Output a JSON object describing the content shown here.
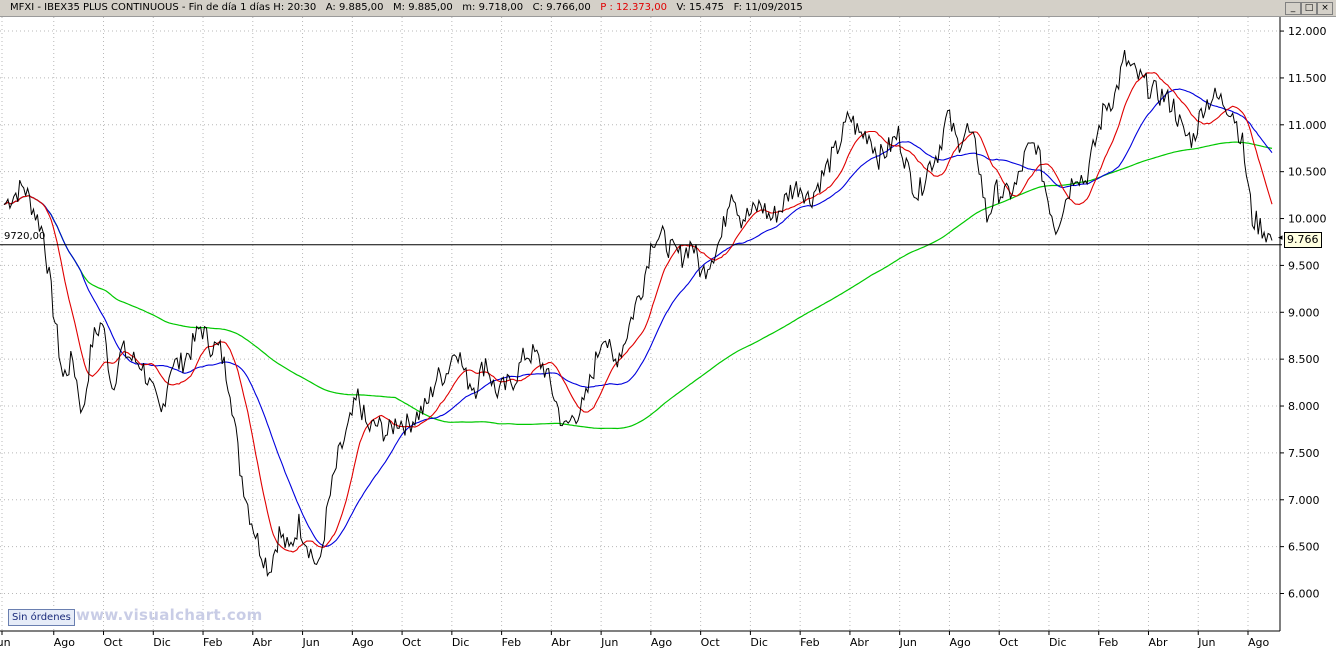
{
  "header": {
    "symbol": "MFXI - IBEX35 PLUS CONTINUOUS - Fin de día 1 días",
    "hour": "H: 20:30",
    "open": "A: 9.885,00",
    "max": "M: 9.885,00",
    "min": "m: 9.718,00",
    "close": "C: 9.766,00",
    "pnl": "P : 12.373,00",
    "volume": "V: 15.475",
    "date": "F: 11/09/2015",
    "pnl_color": "#e00000"
  },
  "window_buttons": [
    "_",
    "□",
    "×"
  ],
  "sin_ordenes": "Sin órdenes",
  "watermark": "www.visualchart.com",
  "horizontal_line_label": "9720,00",
  "current_price_label": "9.766",
  "chart_data": {
    "type": "line",
    "ylim": [
      5600,
      12150
    ],
    "yticks": [
      6000,
      6500,
      7000,
      7500,
      8000,
      8500,
      9000,
      9500,
      10000,
      10500,
      11000,
      11500,
      12000
    ],
    "ytick_labels": [
      "6.000",
      "6.500",
      "7.000",
      "7.500",
      "8.000",
      "8.500",
      "9.000",
      "9.500",
      "10.000",
      "10.500",
      "11.000",
      "11.500",
      "12.000"
    ],
    "xlabels": [
      "Jun",
      "Ago",
      "Oct",
      "Dic",
      "Feb",
      "Abr",
      "Jun",
      "Ago",
      "Oct",
      "Dic",
      "Feb",
      "Abr",
      "Jun",
      "Ago",
      "Oct",
      "Dic",
      "Feb",
      "Abr",
      "Jun",
      "Ago",
      "Oct",
      "Dic",
      "Feb",
      "Abr",
      "Jun",
      "Ago"
    ],
    "horizontal_line": 9720,
    "last_value": 9766,
    "colors": {
      "price": "#000000",
      "ma_fast": "#e00000",
      "ma_mid": "#0000dd",
      "ma_slow": "#00c800",
      "grid": "#b8b8b8"
    },
    "price_anchors": [
      [
        0,
        10150
      ],
      [
        2,
        10350
      ],
      [
        4,
        9850
      ],
      [
        5,
        9050
      ],
      [
        6,
        8300
      ],
      [
        7,
        8500
      ],
      [
        8,
        7900
      ],
      [
        9,
        8700
      ],
      [
        10,
        8900
      ],
      [
        11,
        8200
      ],
      [
        12,
        8600
      ],
      [
        13,
        8500
      ],
      [
        14,
        8450
      ],
      [
        16,
        7900
      ],
      [
        17,
        8450
      ],
      [
        18,
        8450
      ],
      [
        19,
        8600
      ],
      [
        20,
        8850
      ],
      [
        21,
        8650
      ],
      [
        22,
        8600
      ],
      [
        23,
        8200
      ],
      [
        24,
        7350
      ],
      [
        25,
        6850
      ],
      [
        26,
        6500
      ],
      [
        27,
        6250
      ],
      [
        28,
        6650
      ],
      [
        29,
        6450
      ],
      [
        30,
        6750
      ],
      [
        31,
        6500
      ],
      [
        32,
        6250
      ],
      [
        33,
        6950
      ],
      [
        34,
        7450
      ],
      [
        35,
        7750
      ],
      [
        36,
        8100
      ],
      [
        37,
        7750
      ],
      [
        38,
        7800
      ],
      [
        39,
        7700
      ],
      [
        40,
        7850
      ],
      [
        41,
        7800
      ],
      [
        42,
        7900
      ],
      [
        43,
        8000
      ],
      [
        44,
        8300
      ],
      [
        45,
        8350
      ],
      [
        46,
        8650
      ],
      [
        47,
        8300
      ],
      [
        48,
        8200
      ],
      [
        49,
        8500
      ],
      [
        50,
        8150
      ],
      [
        51,
        8200
      ],
      [
        52,
        8300
      ],
      [
        53,
        8550
      ],
      [
        54,
        8550
      ],
      [
        55,
        8400
      ],
      [
        56,
        8100
      ],
      [
        57,
        7750
      ],
      [
        58,
        7900
      ],
      [
        59,
        8000
      ],
      [
        60,
        8400
      ],
      [
        61,
        8800
      ],
      [
        62,
        8450
      ],
      [
        63,
        8650
      ],
      [
        64,
        9000
      ],
      [
        65,
        9300
      ],
      [
        66,
        9800
      ],
      [
        67,
        9800
      ],
      [
        68,
        9650
      ],
      [
        69,
        9600
      ],
      [
        70,
        9750
      ],
      [
        71,
        9400
      ],
      [
        72,
        9600
      ],
      [
        73,
        9800
      ],
      [
        74,
        10350
      ],
      [
        75,
        10000
      ],
      [
        76,
        10050
      ],
      [
        77,
        10150
      ],
      [
        78,
        10000
      ],
      [
        79,
        10100
      ],
      [
        80,
        10300
      ],
      [
        81,
        10350
      ],
      [
        82,
        10200
      ],
      [
        83,
        10400
      ],
      [
        84,
        10600
      ],
      [
        85,
        10800
      ],
      [
        86,
        11100
      ],
      [
        87,
        10900
      ],
      [
        88,
        10900
      ],
      [
        89,
        10650
      ],
      [
        90,
        10750
      ],
      [
        91,
        10900
      ],
      [
        92,
        10500
      ],
      [
        93,
        10250
      ],
      [
        94,
        10550
      ],
      [
        95,
        10700
      ],
      [
        96,
        11100
      ],
      [
        97,
        10800
      ],
      [
        98,
        10950
      ],
      [
        99,
        10700
      ],
      [
        100,
        10000
      ],
      [
        101,
        10300
      ],
      [
        102,
        10250
      ],
      [
        103,
        10350
      ],
      [
        104,
        10700
      ],
      [
        105,
        10800
      ],
      [
        106,
        10300
      ],
      [
        107,
        9900
      ],
      [
        108,
        10200
      ],
      [
        109,
        10500
      ],
      [
        110,
        10400
      ],
      [
        111,
        10800
      ],
      [
        112,
        11200
      ],
      [
        113,
        11300
      ],
      [
        114,
        11700
      ],
      [
        115,
        11550
      ],
      [
        116,
        11450
      ],
      [
        117,
        11350
      ],
      [
        118,
        11300
      ],
      [
        119,
        11200
      ],
      [
        120,
        10900
      ],
      [
        121,
        10850
      ],
      [
        122,
        11200
      ],
      [
        123,
        11300
      ],
      [
        124,
        11250
      ],
      [
        125,
        11150
      ],
      [
        126,
        10800
      ],
      [
        127,
        10000
      ],
      [
        128,
        9900
      ],
      [
        129,
        9766
      ]
    ]
  }
}
